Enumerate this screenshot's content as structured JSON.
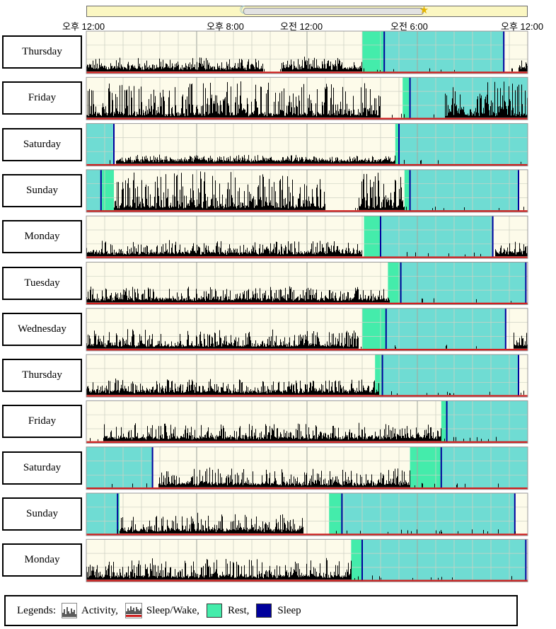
{
  "timebar": {
    "labels": [
      "오후 12:00",
      "오후 8:00",
      "오전 12:00",
      "오전 6:00",
      "오후 12:00"
    ],
    "label_hours": [
      0,
      8,
      12,
      18,
      24
    ],
    "daylight_span_hours": [
      8.5,
      18.3
    ],
    "moon_icon": "moon-icon",
    "sun_icon": "sun-icon"
  },
  "colors": {
    "background": "#fdfbea",
    "grid": "#cfd2c4",
    "major_grid": "#a5a8a0",
    "activity": "#000000",
    "sleep_wake_line": "#d02020",
    "rest": "#44ecab",
    "rest_overlay": "#6fdcd3",
    "sleep_marker": "#00009c"
  },
  "chart_data": {
    "type": "actogram",
    "x_unit": "hours after 12:00 PM (noon)",
    "xlim": [
      0,
      24
    ],
    "days": [
      {
        "label": "Thursday",
        "rest": [
          [
            15.0,
            16.2
          ]
        ],
        "sleep": [
          [
            16.2,
            22.7
          ]
        ],
        "activity_gaps": [
          [
            9.6,
            10.6
          ],
          [
            15.0,
            23.5
          ]
        ],
        "max_activity": 0.3
      },
      {
        "label": "Friday",
        "rest": [
          [
            17.2,
            17.6
          ]
        ],
        "sleep": [
          [
            17.6,
            24.0
          ]
        ],
        "activity_gaps": [
          [
            16.0,
            19.5
          ]
        ],
        "max_activity": 0.9
      },
      {
        "label": "Saturday",
        "rest": [
          [
            0,
            1.5
          ],
          [
            16.8,
            17.0
          ]
        ],
        "sleep": [
          [
            0,
            1.5
          ],
          [
            17.0,
            24.0
          ]
        ],
        "activity_gaps": [
          [
            0,
            1.6
          ],
          [
            16.8,
            24.0
          ]
        ],
        "max_activity": 0.15
      },
      {
        "label": "Sunday",
        "rest": [
          [
            0,
            1.5
          ],
          [
            17.3,
            17.6
          ]
        ],
        "sleep": [
          [
            0,
            0.8
          ],
          [
            17.6,
            23.5
          ]
        ],
        "activity_gaps": [
          [
            0,
            1.5
          ],
          [
            13.0,
            14.8
          ],
          [
            17.3,
            24.0
          ]
        ],
        "max_activity": 0.95
      },
      {
        "label": "Monday",
        "rest": [
          [
            15.1,
            16.0
          ]
        ],
        "sleep": [
          [
            16.0,
            22.1
          ]
        ],
        "activity_gaps": [
          [
            15.0,
            22.2
          ]
        ],
        "max_activity": 0.35
      },
      {
        "label": "Tuesday",
        "rest": [
          [
            16.4,
            17.1
          ]
        ],
        "sleep": [
          [
            17.1,
            23.9
          ]
        ],
        "activity_gaps": [
          [
            16.5,
            24.0
          ]
        ],
        "max_activity": 0.35
      },
      {
        "label": "Wednesday",
        "rest": [
          [
            15.0,
            16.3
          ]
        ],
        "sleep": [
          [
            16.3,
            22.8
          ]
        ],
        "activity_gaps": [
          [
            14.8,
            23.2
          ]
        ],
        "max_activity": 0.45
      },
      {
        "label": "Thursday",
        "rest": [
          [
            15.7,
            16.1
          ]
        ],
        "sleep": [
          [
            16.1,
            23.5
          ]
        ],
        "activity_gaps": [
          [
            15.9,
            24.0
          ]
        ],
        "max_activity": 0.35
      },
      {
        "label": "Friday",
        "rest": [
          [
            19.3,
            19.6
          ]
        ],
        "sleep": [
          [
            19.6,
            24.0
          ]
        ],
        "activity_gaps": [
          [
            0,
            0.9
          ],
          [
            19.3,
            24.0
          ]
        ],
        "max_activity": 0.4
      },
      {
        "label": "Saturday",
        "rest": [
          [
            0,
            3.6
          ],
          [
            17.6,
            19.3
          ]
        ],
        "sleep": [
          [
            0,
            3.6
          ],
          [
            19.3,
            24.0
          ]
        ],
        "activity_gaps": [
          [
            0,
            3.9
          ],
          [
            17.6,
            24.0
          ]
        ],
        "max_activity": 0.45
      },
      {
        "label": "Sunday",
        "rest": [
          [
            0,
            1.8
          ],
          [
            13.2,
            13.9
          ]
        ],
        "sleep": [
          [
            0,
            1.7
          ],
          [
            13.9,
            23.3
          ]
        ],
        "activity_gaps": [
          [
            0,
            1.8
          ],
          [
            11.8,
            24.0
          ]
        ],
        "max_activity": 0.45
      },
      {
        "label": "Monday",
        "rest": [
          [
            14.4,
            15.0
          ]
        ],
        "sleep": [
          [
            15.0,
            23.9
          ]
        ],
        "activity_gaps": [
          [
            14.4,
            24.0
          ]
        ],
        "max_activity": 0.5
      }
    ]
  },
  "legend": {
    "title": "Legends:",
    "items": [
      {
        "label": "Activity,",
        "icon": "activity-icon"
      },
      {
        "label": "Sleep/Wake,",
        "icon": "sleep-wake-icon"
      },
      {
        "label": "Rest,",
        "icon": "rest-swatch"
      },
      {
        "label": "Sleep",
        "icon": "sleep-swatch"
      }
    ]
  }
}
